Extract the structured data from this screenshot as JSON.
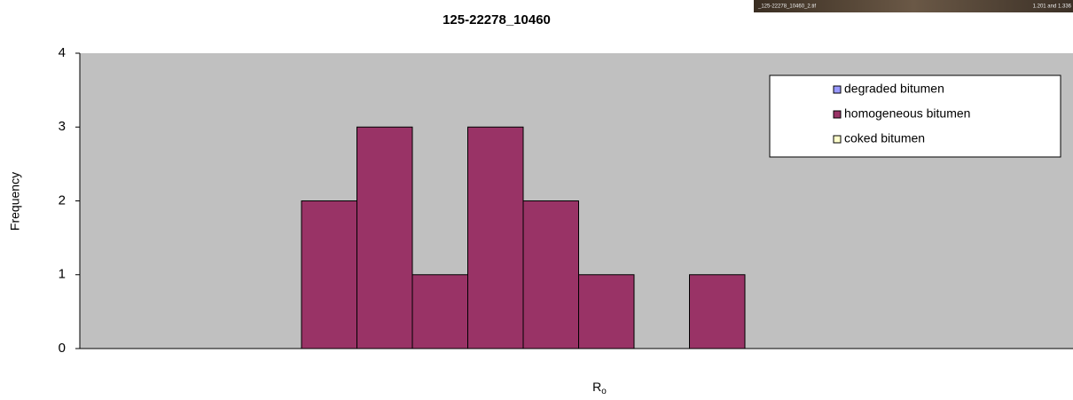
{
  "chart_data": {
    "type": "bar",
    "title": "125-22278_10460",
    "xlabel": {
      "text": "R",
      "subscript": "o"
    },
    "ylabel": "Frequency",
    "categories": [
      null,
      null,
      null,
      null,
      null,
      null,
      null,
      null,
      null,
      null,
      null,
      null,
      null,
      null,
      null,
      null,
      null,
      null
    ],
    "series": [
      {
        "name": "degraded bitumen",
        "color": "#9999ff",
        "values": [
          0,
          0,
          0,
          0,
          0,
          0,
          0,
          0,
          0,
          0,
          0,
          0,
          0,
          0,
          0,
          0,
          0,
          0
        ]
      },
      {
        "name": "homogeneous bitumen",
        "color": "#993366",
        "values": [
          0,
          0,
          0,
          0,
          2,
          3,
          1,
          3,
          2,
          1,
          0,
          1,
          0,
          0,
          0,
          0,
          0,
          0
        ]
      },
      {
        "name": "coked bitumen",
        "color": "#ffffcc",
        "values": [
          0,
          0,
          0,
          0,
          0,
          0,
          0,
          0,
          0,
          0,
          0,
          0,
          0,
          0,
          0,
          0,
          0,
          0
        ]
      }
    ],
    "ylim": [
      0,
      4
    ],
    "yticks": [
      0,
      1,
      2,
      3,
      4
    ],
    "grid": false,
    "legend": "upper right",
    "annotations": [
      "_125-22278_10460_2.tif",
      "1.201 and 1.336"
    ]
  }
}
